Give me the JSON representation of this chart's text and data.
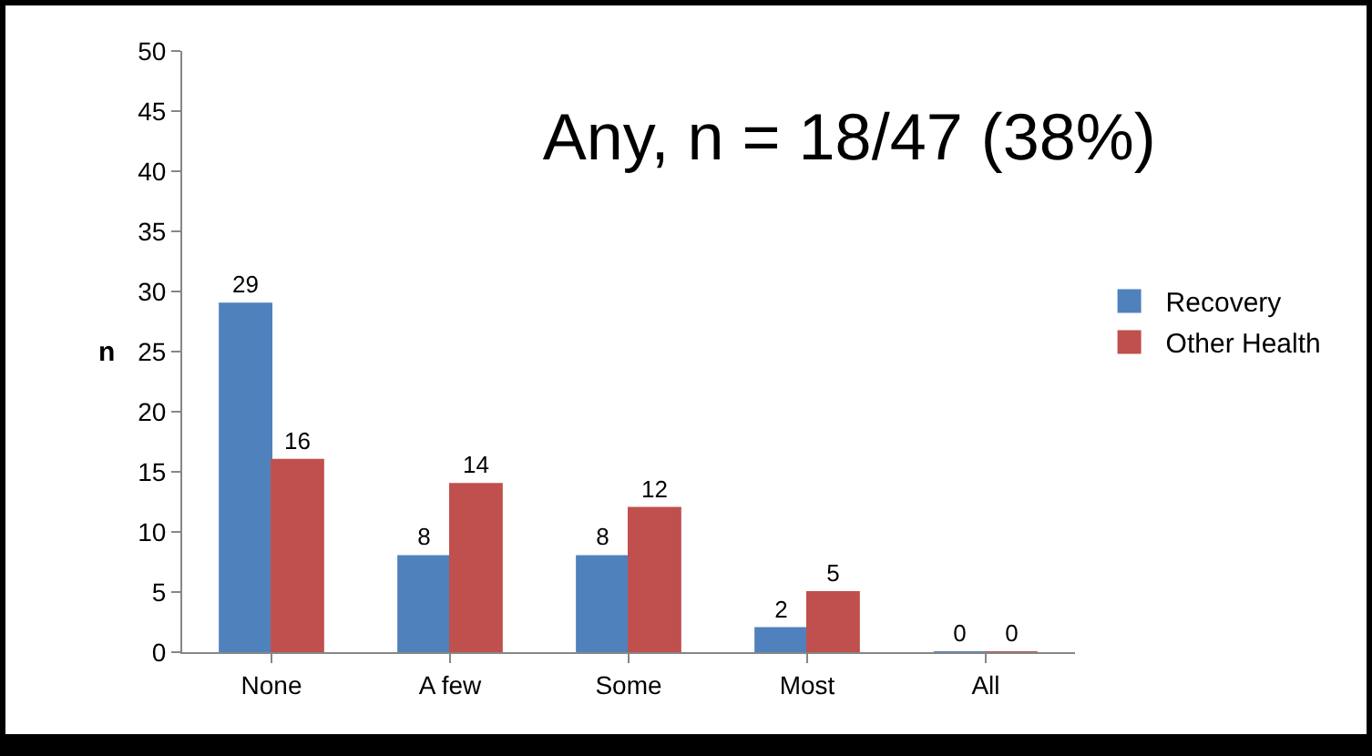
{
  "chart_data": {
    "type": "bar",
    "title": "Any, n = 18/47 (38%)",
    "ylabel": "n",
    "categories": [
      "None",
      "A few",
      "Some",
      "Most",
      "All"
    ],
    "series": [
      {
        "name": "Recovery",
        "color": "#4f81bd",
        "values": [
          29,
          8,
          8,
          2,
          0
        ]
      },
      {
        "name": "Other Health",
        "color": "#c0504d",
        "values": [
          16,
          14,
          12,
          5,
          0
        ]
      }
    ],
    "ylim": [
      0,
      50
    ],
    "yticks": [
      0,
      5,
      10,
      15,
      20,
      25,
      30,
      35,
      40,
      45,
      50
    ],
    "grid": false,
    "legend": "right",
    "data_labels": true
  }
}
